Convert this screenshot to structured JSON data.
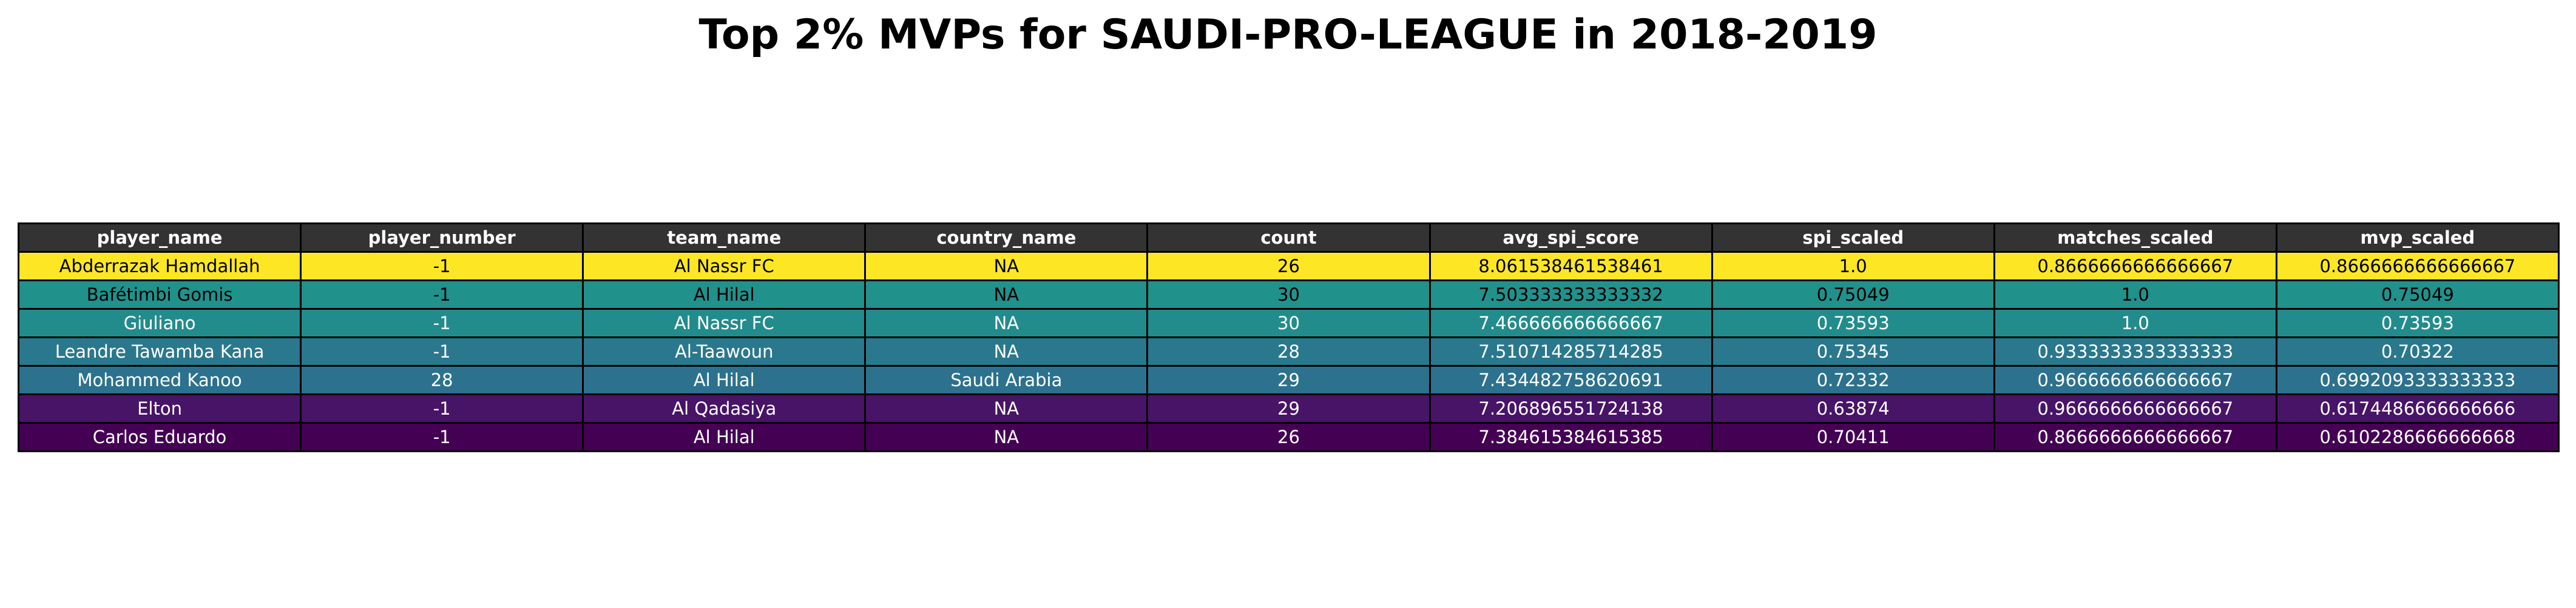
{
  "title": "Top 2% MVPs for SAUDI-PRO-LEAGUE in 2018-2019",
  "chart_data": {
    "type": "table",
    "title": "Top 2% MVPs for SAUDI-PRO-LEAGUE in 2018-2019",
    "columns": [
      "player_name",
      "player_number",
      "team_name",
      "country_name",
      "count",
      "avg_spi_score",
      "spi_scaled",
      "matches_scaled",
      "mvp_scaled"
    ],
    "rows": [
      {
        "cells": [
          "Abderrazak Hamdallah",
          "-1",
          "Al Nassr FC",
          "NA",
          "26",
          "8.061538461538461",
          "1.0",
          "0.8666666666666667",
          "0.8666666666666667"
        ],
        "bg": "#fde725",
        "fg": "#000000"
      },
      {
        "cells": [
          "Bafétimbi Gomis",
          "-1",
          "Al Hilal",
          "NA",
          "30",
          "7.503333333333332",
          "0.75049",
          "1.0",
          "0.75049"
        ],
        "bg": "#21918c",
        "fg": "#000000"
      },
      {
        "cells": [
          "Giuliano",
          "-1",
          "Al Nassr FC",
          "NA",
          "30",
          "7.466666666666667",
          "0.73593",
          "1.0",
          "0.73593"
        ],
        "bg": "#228c8d",
        "fg": "#ffffff"
      },
      {
        "cells": [
          "Leandre Tawamba Kana",
          "-1",
          "Al-Taawoun",
          "NA",
          "28",
          "7.510714285714285",
          "0.75345",
          "0.9333333333333333",
          "0.70322"
        ],
        "bg": "#2a788e",
        "fg": "#ffffff"
      },
      {
        "cells": [
          "Mohammed Kanoo",
          "28",
          "Al Hilal",
          "Saudi Arabia",
          "29",
          "7.434482758620691",
          "0.72332",
          "0.9666666666666667",
          "0.6992093333333333"
        ],
        "bg": "#2c728e",
        "fg": "#ffffff"
      },
      {
        "cells": [
          "Elton",
          "-1",
          "Al Qadasiya",
          "NA",
          "29",
          "7.206896551724138",
          "0.63874",
          "0.9666666666666667",
          "0.6174486666666666"
        ],
        "bg": "#481467",
        "fg": "#ffffff"
      },
      {
        "cells": [
          "Carlos Eduardo",
          "-1",
          "Al Hilal",
          "NA",
          "26",
          "7.384615384615385",
          "0.70411",
          "0.8666666666666667",
          "0.6102286666666668"
        ],
        "bg": "#440154",
        "fg": "#ffffff"
      }
    ],
    "header_bg": "#333333",
    "header_fg": "#ffffff",
    "colormap": "viridis"
  }
}
